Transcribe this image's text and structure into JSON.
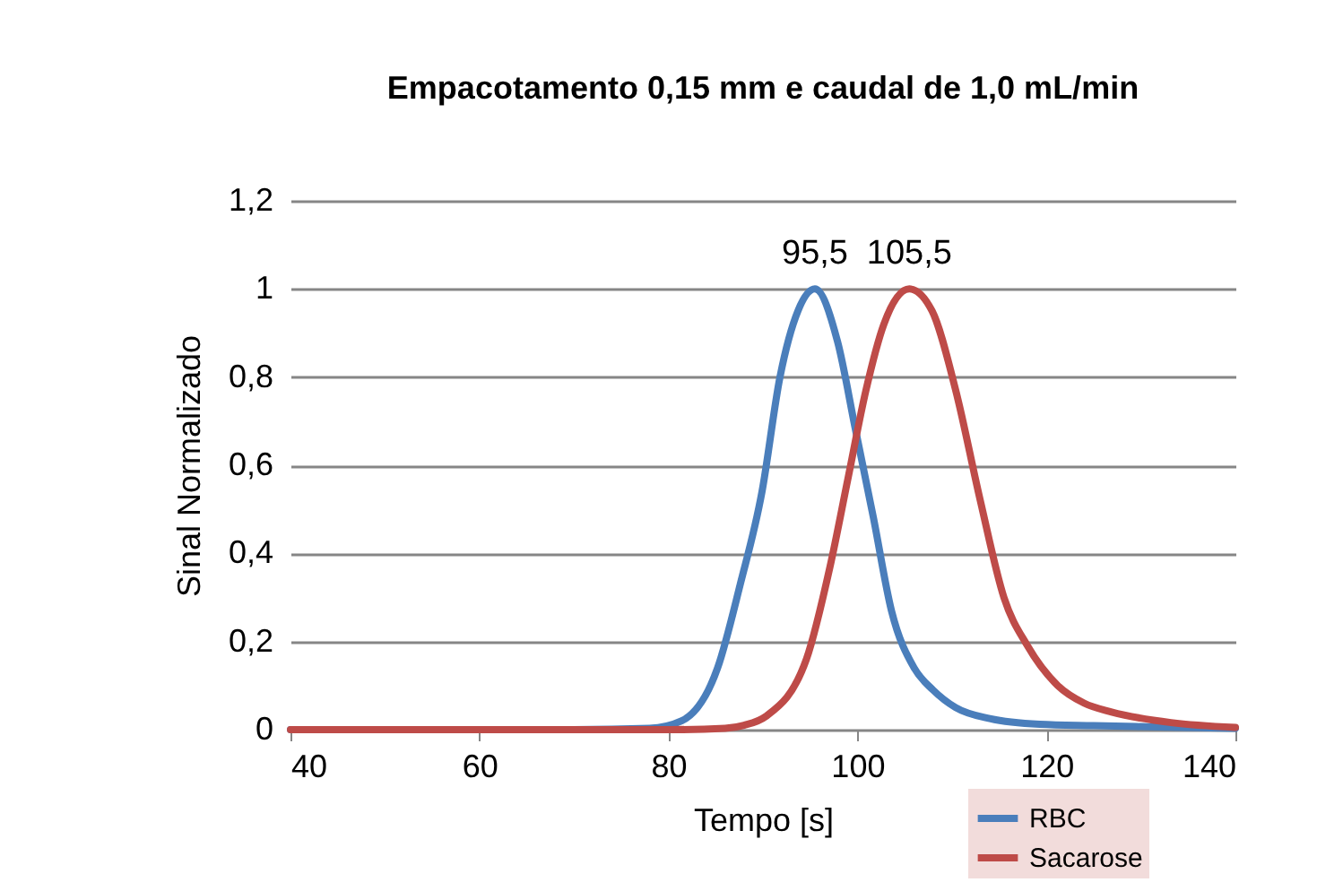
{
  "chart_data": {
    "type": "line",
    "title": "Empacotamento 0,15 mm e caudal de 1,0 mL/min",
    "xlabel": "Tempo [s]",
    "ylabel": "Sinal Normalizado",
    "xlim": [
      40,
      140
    ],
    "xticks": [
      40,
      60,
      80,
      100,
      120,
      140
    ],
    "ylim": [
      0,
      1.2
    ],
    "yticks": [
      {
        "value": 0,
        "label": "0"
      },
      {
        "value": 0.2,
        "label": "0,2"
      },
      {
        "value": 0.4,
        "label": "0,4"
      },
      {
        "value": 0.6,
        "label": "0,6"
      },
      {
        "value": 0.8,
        "label": "0,8"
      },
      {
        "value": 1,
        "label": "1"
      },
      {
        "value": 1.2,
        "label": "1,2"
      }
    ],
    "grid": "y",
    "legend": "bottom right",
    "marker": "none",
    "line_style": "solid",
    "annotations": [
      {
        "text": "95,5",
        "x": 95.5,
        "y": 1
      },
      {
        "text": "105,5",
        "x": 105.5,
        "y": 1
      }
    ],
    "series": [
      {
        "name": "RBC",
        "color": "#4a7ebb",
        "x": [
          40,
          70,
          78,
          81.4,
          85.2,
          87.6,
          89.9,
          91.8,
          93.7,
          95.5,
          97.9,
          99.8,
          101.7,
          103.6,
          106,
          108,
          110.4,
          114,
          119.3,
          125,
          132,
          140
        ],
        "values": [
          0,
          0,
          0.003,
          0.02,
          0.14,
          0.33,
          0.54,
          0.8,
          0.95,
          1,
          0.88,
          0.68,
          0.48,
          0.27,
          0.14,
          0.09,
          0.05,
          0.025,
          0.012,
          0.009,
          0.006,
          0.003
        ]
      },
      {
        "name": "Sacarose",
        "color": "#be4b48",
        "x": [
          40,
          80,
          86,
          88,
          90.3,
          94.6,
          97.1,
          99,
          100.9,
          102.8,
          105.5,
          107.9,
          110.4,
          113,
          115.5,
          118,
          121.2,
          124,
          126.9,
          133.2,
          140
        ],
        "values": [
          0,
          0,
          0.003,
          0.01,
          0.03,
          0.16,
          0.37,
          0.57,
          0.77,
          0.92,
          1,
          0.95,
          0.77,
          0.52,
          0.3,
          0.19,
          0.1,
          0.06,
          0.04,
          0.016,
          0.005
        ]
      }
    ]
  }
}
